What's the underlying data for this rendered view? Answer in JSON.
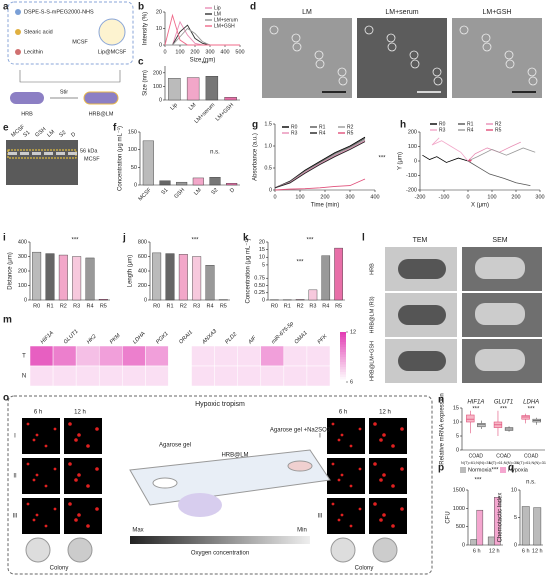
{
  "panels": {
    "a": {
      "label": "a",
      "texts": [
        "DSPE-S-S-mPEG2000-NHS",
        "Stearic acid",
        "Lecithin",
        "MCSF",
        "Lip@MCSF",
        "HRB",
        "Stir",
        "HRB@LM"
      ]
    },
    "d": {
      "label": "d",
      "images": [
        "LM",
        "LM+serum",
        "LM+GSH"
      ]
    },
    "e": {
      "label": "e",
      "lanes": [
        "MCSF",
        "S1",
        "GSH",
        "LM",
        "S2",
        "D"
      ],
      "marker": "56 kDa",
      "band": "MCSF"
    },
    "l": {
      "label": "l",
      "columns": [
        "TEM",
        "SEM"
      ],
      "rows": [
        "HRB",
        "HRB@LM (R3)",
        "HRB@LM+GSH"
      ]
    },
    "o": {
      "label": "o",
      "title": "Hypoxic tropism",
      "times": [
        "6 h",
        "12 h"
      ],
      "rows": [
        "I",
        "II",
        "III"
      ],
      "gel_left": "Agarose gel",
      "gel_right": "Agarose gel +Na2SO3",
      "device": "HRB@LM",
      "max": "Max",
      "min": "Min",
      "gradient": "Oxygen concentration",
      "colony": "Colony"
    }
  },
  "chart_data": [
    {
      "panel": "b",
      "type": "line",
      "ylabel": "Intensity (%)",
      "xlabel": "Size (nm)",
      "x": [
        0,
        50,
        100,
        150,
        200,
        250,
        300,
        350,
        400,
        450,
        500
      ],
      "xlim": [
        0,
        500
      ],
      "xticks": [
        0,
        100,
        200,
        300,
        400,
        500
      ],
      "ylim": [
        0,
        20
      ],
      "yticks": [
        0,
        10,
        20
      ],
      "series": [
        {
          "name": "Lip",
          "color": "#e88fb5",
          "values": [
            0,
            0,
            14,
            6,
            1,
            0,
            0,
            0,
            0,
            0,
            0
          ]
        },
        {
          "name": "LM",
          "color": "#333333",
          "values": [
            0,
            0,
            8,
            12,
            4,
            1,
            0,
            0,
            0,
            0,
            0
          ]
        },
        {
          "name": "LM+serum",
          "color": "#999999",
          "values": [
            0,
            0,
            5,
            10,
            7,
            2,
            0,
            0,
            0,
            0,
            0
          ]
        },
        {
          "name": "LM+GSH",
          "color": "#f06a8a",
          "values": [
            0,
            18,
            3,
            0,
            0,
            0,
            0,
            0,
            0,
            0,
            0
          ]
        }
      ]
    },
    {
      "panel": "c",
      "type": "bar",
      "ylabel": "Size (nm)",
      "categories": [
        "Lip",
        "LM",
        "LM+serum",
        "LM+GSH"
      ],
      "values": [
        160,
        165,
        175,
        20
      ],
      "colors": [
        "#bbbbbb",
        "#f2a7c9",
        "#777777",
        "#e86fa8"
      ],
      "ylim": [
        0,
        250
      ],
      "yticks": [
        0,
        100,
        200
      ],
      "annotations": [
        "***"
      ]
    },
    {
      "panel": "f",
      "type": "bar",
      "ylabel": "Concentration (μg mL⁻¹)",
      "categories": [
        "MCSF",
        "S1",
        "GSH",
        "LM",
        "S2",
        "D"
      ],
      "values": [
        125,
        12,
        8,
        20,
        22,
        5
      ],
      "colors": [
        "#bbbbbb",
        "#666666",
        "#999999",
        "#f2a7c9",
        "#777777",
        "#e86fa8"
      ],
      "ylim": [
        0,
        150
      ],
      "yticks": [
        0,
        50,
        100,
        150
      ],
      "annotations": [
        "n.s."
      ]
    },
    {
      "panel": "g",
      "type": "line",
      "ylabel": "Absorbance (a.u.)",
      "xlabel": "Time (min)",
      "x": [
        0,
        60,
        120,
        180,
        240,
        300,
        360
      ],
      "xlim": [
        0,
        400
      ],
      "xticks": [
        0,
        100,
        200,
        300,
        400
      ],
      "ylim": [
        0,
        1.5
      ],
      "yticks": [
        0,
        0.5,
        {
          "value": 1,
          "label": "1.0"
        },
        1.5
      ],
      "series": [
        {
          "name": "R0",
          "color": "#000000",
          "values": [
            0.05,
            0.2,
            0.45,
            0.65,
            0.85,
            1.0,
            1.2
          ]
        },
        {
          "name": "R1",
          "color": "#555555",
          "values": [
            0.05,
            0.19,
            0.43,
            0.63,
            0.83,
            0.98,
            1.17
          ]
        },
        {
          "name": "R2",
          "color": "#999999",
          "values": [
            0.05,
            0.18,
            0.42,
            0.61,
            0.8,
            0.96,
            1.14
          ]
        },
        {
          "name": "R3",
          "color": "#e88fb5",
          "values": [
            0.05,
            0.17,
            0.4,
            0.6,
            0.78,
            0.94,
            1.12
          ]
        },
        {
          "name": "R4",
          "color": "#222222",
          "values": [
            0.05,
            0.16,
            0.38,
            0.58,
            0.76,
            0.92,
            1.1
          ]
        },
        {
          "name": "R5",
          "color": "#e0507a",
          "values": [
            0,
            0.02,
            0.03,
            0.05,
            0.08,
            0.1,
            0.25
          ]
        }
      ],
      "annotations": [
        "***"
      ]
    },
    {
      "panel": "h",
      "type": "trajectory",
      "ylabel": "Y (μm)",
      "xlabel": "X (μm)",
      "xlim": [
        -200,
        300
      ],
      "xticks": [
        -200,
        -100,
        0,
        100,
        200,
        300
      ],
      "ylim": [
        -200,
        200
      ],
      "yticks": [
        -200,
        -100,
        0,
        100,
        200
      ],
      "series": [
        {
          "name": "R0",
          "color": "#000000",
          "x": [
            0,
            -40,
            -90,
            -130,
            -160,
            -190
          ],
          "y": [
            0,
            20,
            -10,
            30,
            10,
            40
          ]
        },
        {
          "name": "R1",
          "color": "#555555",
          "x": [
            0,
            40,
            90,
            150,
            200,
            260
          ],
          "y": [
            0,
            -40,
            -90,
            -120,
            -150,
            -170
          ]
        },
        {
          "name": "R2",
          "color": "#e88fb5",
          "x": [
            0,
            30,
            80,
            130,
            180,
            220
          ],
          "y": [
            0,
            50,
            90,
            60,
            100,
            130
          ]
        },
        {
          "name": "R3",
          "color": "#f2a7c9",
          "x": [
            0,
            -30,
            -70,
            -110,
            -150,
            -120
          ],
          "y": [
            0,
            60,
            100,
            140,
            110,
            160
          ]
        },
        {
          "name": "R4",
          "color": "#999999",
          "x": [
            0,
            40,
            100,
            160,
            230,
            280
          ],
          "y": [
            0,
            30,
            80,
            40,
            90,
            60
          ]
        },
        {
          "name": "R5",
          "color": "#e0507a",
          "x": [
            0,
            5,
            10,
            8,
            12,
            15
          ],
          "y": [
            0,
            5,
            -5,
            8,
            2,
            6
          ]
        }
      ]
    },
    {
      "panel": "i",
      "type": "bar",
      "ylabel": "Distance (μm)",
      "categories": [
        "R0",
        "R1",
        "R2",
        "R3",
        "R4",
        "R5"
      ],
      "values": [
        330,
        320,
        310,
        300,
        290,
        5
      ],
      "colors": [
        "#bbbbbb",
        "#666666",
        "#f2a7c9",
        "#f7c9dd",
        "#999999",
        "#e86fa8"
      ],
      "ylim": [
        0,
        400
      ],
      "yticks": [
        0,
        100,
        200,
        300,
        400
      ],
      "annotations": [
        "***"
      ]
    },
    {
      "panel": "j",
      "type": "bar",
      "ylabel": "Length (μm)",
      "categories": [
        "R0",
        "R1",
        "R2",
        "R3",
        "R4",
        "R5"
      ],
      "values": [
        650,
        640,
        630,
        600,
        480,
        5
      ],
      "colors": [
        "#bbbbbb",
        "#666666",
        "#f2a7c9",
        "#f7c9dd",
        "#999999",
        "#e86fa8"
      ],
      "ylim": [
        0,
        800
      ],
      "yticks": [
        0,
        200,
        400,
        600,
        800
      ],
      "annotations": [
        "***"
      ]
    },
    {
      "panel": "k",
      "type": "bar",
      "ylabel": "Concentration (μg mL⁻¹)",
      "categories": [
        "R0",
        "R1",
        "R2",
        "R3",
        "R4",
        "R5"
      ],
      "values": [
        0.01,
        0.01,
        0.02,
        0.35,
        11,
        16
      ],
      "colors": [
        "#bbbbbb",
        "#666666",
        "#f2a7c9",
        "#f7c9dd",
        "#999999",
        "#e86fa8"
      ],
      "ylim": [
        0,
        20
      ],
      "ybreak": 1,
      "yticks": [
        0,
        0.25,
        {
          "value": 0.5,
          "label": "0.50"
        },
        0.75,
        5,
        10,
        15,
        20
      ],
      "annotations": [
        "***",
        "***"
      ]
    },
    {
      "panel": "m",
      "type": "heatmap",
      "columns": [
        "HIF1A",
        "GLUT1",
        "HK2",
        "PKM",
        "LDHA",
        "PGK1",
        "ORAI1",
        "ANXA3",
        "PLD2",
        "AIF",
        "miR-675-5p",
        "OMA1",
        "PFK"
      ],
      "rows": [
        "T",
        "N"
      ],
      "values": [
        [
          11,
          10,
          8,
          9,
          10,
          9,
          6,
          7,
          7,
          7,
          9,
          7,
          7
        ],
        [
          7,
          7,
          7,
          7,
          7,
          7,
          6,
          7,
          7,
          7,
          7,
          7,
          7
        ]
      ],
      "clim": [
        6,
        12
      ],
      "cticks": [
        6,
        12
      ]
    },
    {
      "panel": "n",
      "type": "box",
      "ylabel": "Relative mRNA expression",
      "genes": [
        "HIF1A",
        "GLUT1",
        "LDHA"
      ],
      "xlabel": "COAD",
      "note": "N(T)=61;N(N)=31",
      "annotation": "***",
      "ylim": [
        0,
        15
      ],
      "yticks": [
        0,
        5,
        10,
        15
      ],
      "series": [
        {
          "color": "#e0507a",
          "stats": [
            [
              6,
              10,
              11,
              12.5,
              14
            ],
            [
              5,
              8,
              9,
              10,
              14
            ],
            [
              9.5,
              11,
              11.8,
              12.3,
              13
            ]
          ]
        },
        {
          "color": "#555555",
          "stats": [
            [
              7.5,
              8.3,
              9,
              9.5,
              10.5
            ],
            [
              6.5,
              7,
              7.5,
              8,
              8.5
            ],
            [
              9,
              10,
              10.5,
              11,
              11.5
            ]
          ]
        }
      ]
    },
    {
      "panel": "p",
      "type": "groupbar",
      "ylabel": "CFU",
      "categories": [
        "6 h",
        "12 h"
      ],
      "series": [
        {
          "name": "Normoxia",
          "color": "#bbbbbb",
          "values": [
            150,
            220
          ]
        },
        {
          "name": "Hypoxia",
          "color": "#f4a6cf",
          "values": [
            950,
            1300
          ]
        }
      ],
      "ylim": [
        0,
        1500
      ],
      "yticks": [
        0,
        500,
        1000,
        1500
      ],
      "annotations": [
        "***",
        "***"
      ]
    },
    {
      "panel": "q",
      "type": "bar",
      "ylabel": "Chemotactic Index",
      "categories": [
        "6 h",
        "12 h"
      ],
      "values": [
        7,
        6.8
      ],
      "colors": [
        "#bbbbbb",
        "#bbbbbb"
      ],
      "ylim": [
        0,
        10
      ],
      "yticks": [
        0,
        5,
        10
      ],
      "annotations": [
        "n.s."
      ]
    }
  ]
}
